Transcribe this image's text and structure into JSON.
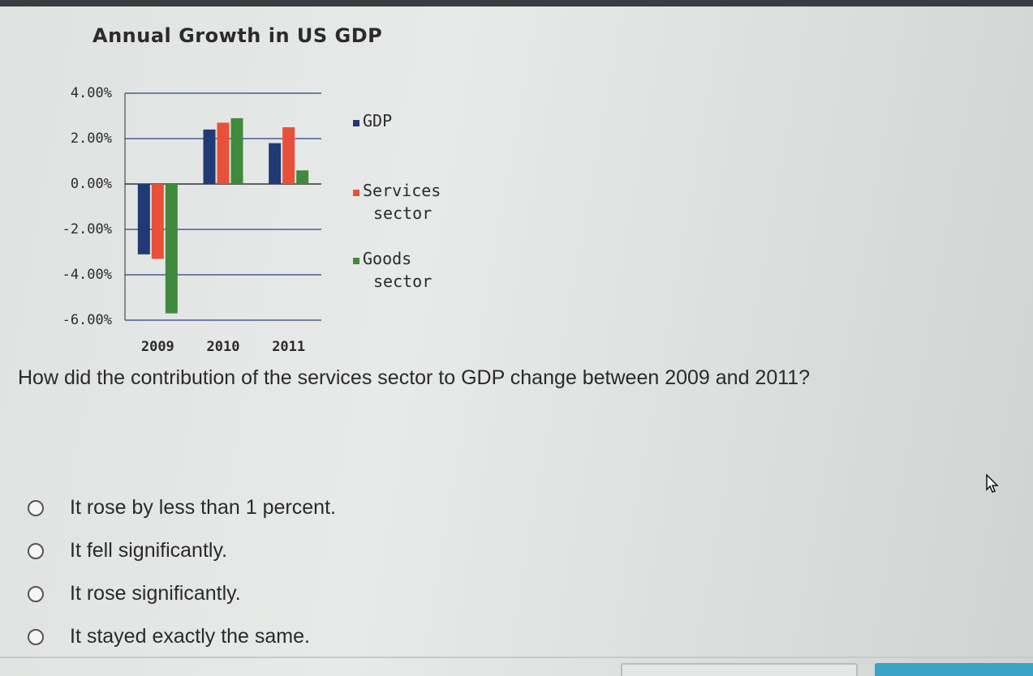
{
  "chart_data": {
    "type": "bar",
    "title": "Annual Growth in US GDP",
    "categories": [
      "2009",
      "2010",
      "2011"
    ],
    "ylim": [
      -6,
      4
    ],
    "yticks": [
      "4.00%",
      "2.00%",
      "0.00%",
      "-2.00%",
      "-4.00%",
      "-6.00%"
    ],
    "ytick_values": [
      4,
      2,
      0,
      -2,
      -4,
      -6
    ],
    "grid": true,
    "legend_position": "right",
    "series": [
      {
        "name": "GDP",
        "values": [
          -3.1,
          2.4,
          1.8
        ],
        "color": "#1f3a74"
      },
      {
        "name": "Services sector",
        "values": [
          -3.3,
          2.7,
          2.5
        ],
        "color": "#e8503a"
      },
      {
        "name": "Goods sector",
        "values": [
          -5.7,
          2.9,
          0.6
        ],
        "color": "#3f8a3c"
      }
    ],
    "legend": [
      {
        "line1": "GDP",
        "line2": ""
      },
      {
        "line1": "Services",
        "line2": "sector"
      },
      {
        "line1": "Goods",
        "line2": "sector"
      }
    ]
  },
  "question": "How did the contribution of the services sector to GDP change between 2009 and 2011?",
  "options": [
    "It rose by less than 1 percent.",
    "It fell significantly.",
    "It rose significantly.",
    "It stayed exactly the same."
  ],
  "colors": {
    "gridline": "#6e7fa6",
    "axis": "#333333"
  }
}
